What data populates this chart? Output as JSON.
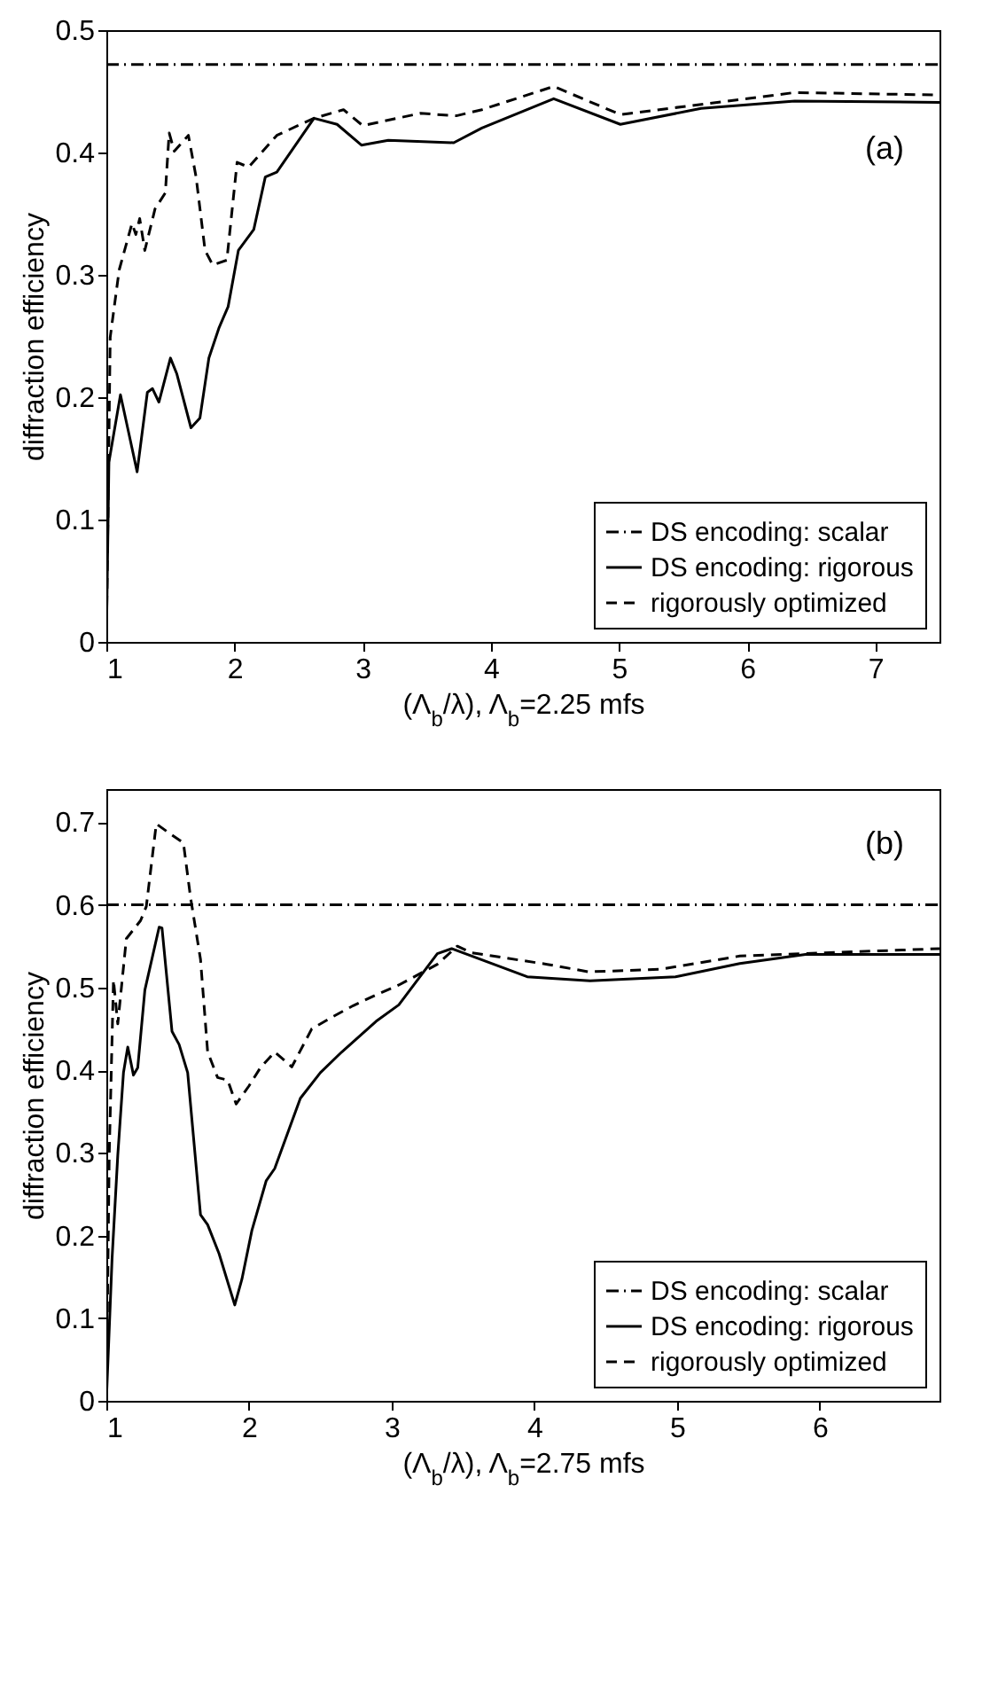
{
  "chart_data": [
    {
      "type": "line",
      "xlabel": "(Λ$_{b}$/λ), Λ$_{b}$=2.25 mfs",
      "ylabel": "diffraction efficiency",
      "xlim": [
        1,
        7.5
      ],
      "ylim": [
        0,
        0.5
      ],
      "xticks": [
        1,
        2,
        3,
        4,
        5,
        6,
        7
      ],
      "yticks": [
        0,
        0.1,
        0.2,
        0.3,
        0.4,
        0.5
      ],
      "legend": "bottom right",
      "annotations": [
        "(a)"
      ],
      "series": [
        {
          "name": "DS encoding: scalar",
          "color": "#000000",
          "line_style": "dashdot",
          "x": [
            1,
            7.5
          ],
          "values": [
            0.472,
            0.472
          ]
        },
        {
          "name": "DS encoding: rigorous",
          "color": "#000000",
          "line_style": "solid",
          "x": [
            1,
            1.02,
            1.11,
            1.17,
            1.24,
            1.32,
            1.36,
            1.41,
            1.5,
            1.55,
            1.66,
            1.73,
            1.8,
            1.88,
            1.95,
            2.03,
            2.15,
            2.24,
            2.33,
            2.62,
            2.8,
            2.99,
            3.2,
            3.71,
            3.93,
            4.49,
            5.01,
            5.64,
            6.37,
            7.5
          ],
          "values": [
            0,
            0.147,
            0.202,
            0.173,
            0.139,
            0.204,
            0.207,
            0.196,
            0.232,
            0.219,
            0.175,
            0.183,
            0.232,
            0.257,
            0.274,
            0.32,
            0.337,
            0.38,
            0.384,
            0.428,
            0.423,
            0.406,
            0.41,
            0.408,
            0.42,
            0.444,
            0.423,
            0.436,
            0.442,
            0.441
          ]
        },
        {
          "name": "rigorously optimized",
          "color": "#000000",
          "line_style": "dashed",
          "x": [
            1,
            1.03,
            1.1,
            1.2,
            1.23,
            1.26,
            1.3,
            1.38,
            1.46,
            1.49,
            1.53,
            1.64,
            1.7,
            1.77,
            1.83,
            1.94,
            2.02,
            2.11,
            2.33,
            2.62,
            2.85,
            3,
            3.45,
            3.73,
            3.93,
            4.49,
            5.01,
            6.37,
            7.5
          ],
          "values": [
            0,
            0.249,
            0.304,
            0.342,
            0.333,
            0.346,
            0.32,
            0.354,
            0.367,
            0.416,
            0.401,
            0.414,
            0.38,
            0.32,
            0.308,
            0.312,
            0.392,
            0.388,
            0.414,
            0.428,
            0.435,
            0.422,
            0.432,
            0.43,
            0.435,
            0.454,
            0.431,
            0.449,
            0.447
          ]
        }
      ]
    },
    {
      "type": "line",
      "xlabel": "(Λ$_{b}$/λ), Λ$_{b}$=2.75 mfs",
      "ylabel": "diffraction efficiency",
      "xlim": [
        1,
        6.84
      ],
      "ylim": [
        0,
        0.74
      ],
      "xticks": [
        1,
        2,
        3,
        4,
        5,
        6
      ],
      "yticks": [
        0,
        0.1,
        0.2,
        0.3,
        0.4,
        0.5,
        0.6,
        0.7
      ],
      "legend": "bottom right",
      "annotations": [
        "(b)"
      ],
      "series": [
        {
          "name": "DS encoding: scalar",
          "color": "#000000",
          "line_style": "dashdot",
          "x": [
            1,
            6.84
          ],
          "values": [
            0.6,
            0.6
          ]
        },
        {
          "name": "DS encoding: rigorous",
          "color": "#000000",
          "line_style": "solid",
          "x": [
            1,
            1.04,
            1.08,
            1.12,
            1.15,
            1.19,
            1.22,
            1.27,
            1.37,
            1.39,
            1.46,
            1.51,
            1.57,
            1.66,
            1.71,
            1.79,
            1.9,
            1.95,
            2.02,
            2.12,
            2.18,
            2.36,
            2.5,
            2.65,
            2.89,
            3.05,
            3.32,
            3.42,
            3.95,
            4.39,
            4.99,
            5.44,
            5.9,
            6.84
          ],
          "values": [
            0,
            0.172,
            0.297,
            0.397,
            0.428,
            0.394,
            0.403,
            0.497,
            0.573,
            0.572,
            0.447,
            0.431,
            0.397,
            0.225,
            0.213,
            0.178,
            0.116,
            0.147,
            0.206,
            0.266,
            0.281,
            0.366,
            0.397,
            0.422,
            0.459,
            0.479,
            0.541,
            0.547,
            0.513,
            0.508,
            0.513,
            0.529,
            0.54,
            0.54
          ]
        },
        {
          "name": "rigorously optimized",
          "color": "#000000",
          "line_style": "dashed",
          "x": [
            1,
            1.02,
            1.05,
            1.08,
            1.14,
            1.24,
            1.28,
            1.35,
            1.43,
            1.54,
            1.59,
            1.66,
            1.71,
            1.78,
            1.85,
            1.91,
            2,
            2.08,
            2.18,
            2.3,
            2.44,
            2.57,
            2.73,
            2.89,
            3.05,
            3.32,
            3.46,
            3.56,
            4.09,
            4.38,
            4.88,
            5.44,
            6.84
          ],
          "values": [
            0,
            0.297,
            0.509,
            0.456,
            0.559,
            0.581,
            0.598,
            0.698,
            0.688,
            0.675,
            0.609,
            0.534,
            0.422,
            0.391,
            0.388,
            0.359,
            0.381,
            0.403,
            0.422,
            0.404,
            0.45,
            0.463,
            0.478,
            0.491,
            0.503,
            0.528,
            0.55,
            0.542,
            0.528,
            0.519,
            0.522,
            0.538,
            0.547
          ]
        }
      ]
    }
  ]
}
